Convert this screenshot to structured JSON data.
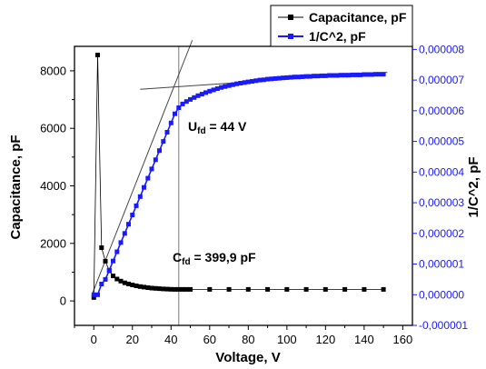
{
  "chart_data": {
    "type": "scatter",
    "xlabel": "Voltage, V",
    "ylabel_left": "Capacitance, pF",
    "ylabel_right": "1/C^2, pF",
    "xlim": [
      -10,
      165
    ],
    "ylim_left": [
      -850,
      8850
    ],
    "ylim_right": [
      -1e-06,
      8.1e-06
    ],
    "x_ticks": [
      "0",
      "20",
      "40",
      "60",
      "80",
      "100",
      "120",
      "140",
      "160"
    ],
    "y_left_ticks": [
      "0",
      "2000",
      "4000",
      "6000",
      "8000"
    ],
    "y_right_ticks": [
      "-0,000001",
      "0,000000",
      "0,000001",
      "0,000002",
      "0,000003",
      "0,000004",
      "0,000005",
      "0,000006",
      "0,000007",
      "0,000008"
    ],
    "series": [
      {
        "name": "Capacitance, pF",
        "axis": "left",
        "color": "#000000",
        "marker": "square",
        "x": [
          0,
          2,
          4,
          6,
          8,
          10,
          12,
          14,
          16,
          18,
          20,
          22,
          24,
          26,
          28,
          30,
          32,
          34,
          36,
          38,
          40,
          42,
          44,
          46,
          48,
          50,
          60,
          70,
          80,
          90,
          100,
          110,
          120,
          130,
          140,
          150
        ],
        "y": [
          120,
          8550,
          1850,
          1380,
          1050,
          870,
          760,
          690,
          630,
          590,
          555,
          525,
          500,
          480,
          462,
          447,
          435,
          425,
          417,
          410,
          405,
          401,
          400,
          400,
          400,
          399.9,
          399.9,
          399.9,
          399.9,
          399.9,
          399.9,
          399.9,
          399.9,
          399.9,
          399.9,
          399.9
        ]
      },
      {
        "name": "1/C^2, pF",
        "axis": "right",
        "color": "#1a1aff",
        "marker": "square",
        "x": [
          0,
          2,
          4,
          6,
          8,
          10,
          12,
          14,
          16,
          18,
          20,
          22,
          24,
          26,
          28,
          30,
          32,
          34,
          36,
          38,
          40,
          42,
          44,
          46,
          48,
          50,
          52,
          54,
          56,
          58,
          60,
          62,
          64,
          66,
          68,
          70,
          72,
          74,
          76,
          78,
          80,
          82,
          84,
          86,
          88,
          90,
          92,
          94,
          96,
          98,
          100,
          102,
          104,
          106,
          108,
          110,
          112,
          114,
          116,
          118,
          120,
          122,
          124,
          126,
          128,
          130,
          132,
          134,
          136,
          138,
          140,
          142,
          144,
          146,
          148,
          150
        ],
        "y": [
          0,
          0,
          3.5e-07,
          5e-07,
          8e-07,
          1.1e-06,
          1.4e-06,
          1.7e-06,
          2e-06,
          2.3e-06,
          2.6e-06,
          2.9e-06,
          3.2e-06,
          3.5e-06,
          3.8e-06,
          4.1e-06,
          4.4e-06,
          4.7e-06,
          5e-06,
          5.3e-06,
          5.6e-06,
          5.9e-06,
          6.1e-06,
          6.22e-06,
          6.3e-06,
          6.37e-06,
          6.43e-06,
          6.49e-06,
          6.54e-06,
          6.59e-06,
          6.64e-06,
          6.68e-06,
          6.72e-06,
          6.76e-06,
          6.79e-06,
          6.82e-06,
          6.85e-06,
          6.88e-06,
          6.9e-06,
          6.92e-06,
          6.94e-06,
          6.96e-06,
          6.98e-06,
          7e-06,
          7.01e-06,
          7.03e-06,
          7.04e-06,
          7.05e-06,
          7.06e-06,
          7.07e-06,
          7.08e-06,
          7.09e-06,
          7.1e-06,
          7.1e-06,
          7.11e-06,
          7.12e-06,
          7.12e-06,
          7.13e-06,
          7.13e-06,
          7.14e-06,
          7.14e-06,
          7.15e-06,
          7.15e-06,
          7.15e-06,
          7.16e-06,
          7.16e-06,
          7.16e-06,
          7.17e-06,
          7.17e-06,
          7.17e-06,
          7.18e-06,
          7.18e-06,
          7.18e-06,
          7.19e-06,
          7.19e-06,
          7.19e-06
        ]
      }
    ],
    "fit_lines": [
      {
        "axis": "right",
        "x": [
          -1,
          51
        ],
        "y": [
          0,
          8.3e-06
        ]
      },
      {
        "axis": "right",
        "x": [
          24,
          152
        ],
        "y": [
          6.7e-06,
          7.25e-06
        ]
      }
    ],
    "vline_x": 44,
    "legend": {
      "position": "top-right",
      "entries": [
        "Capacitance, pF",
        "1/C^2, pF"
      ]
    },
    "annotations": [
      {
        "main": "U",
        "sub": "fd",
        "rest": " = 44 V"
      },
      {
        "main": "C",
        "sub": "fd",
        "rest": " = 399,9 pF"
      }
    ]
  }
}
